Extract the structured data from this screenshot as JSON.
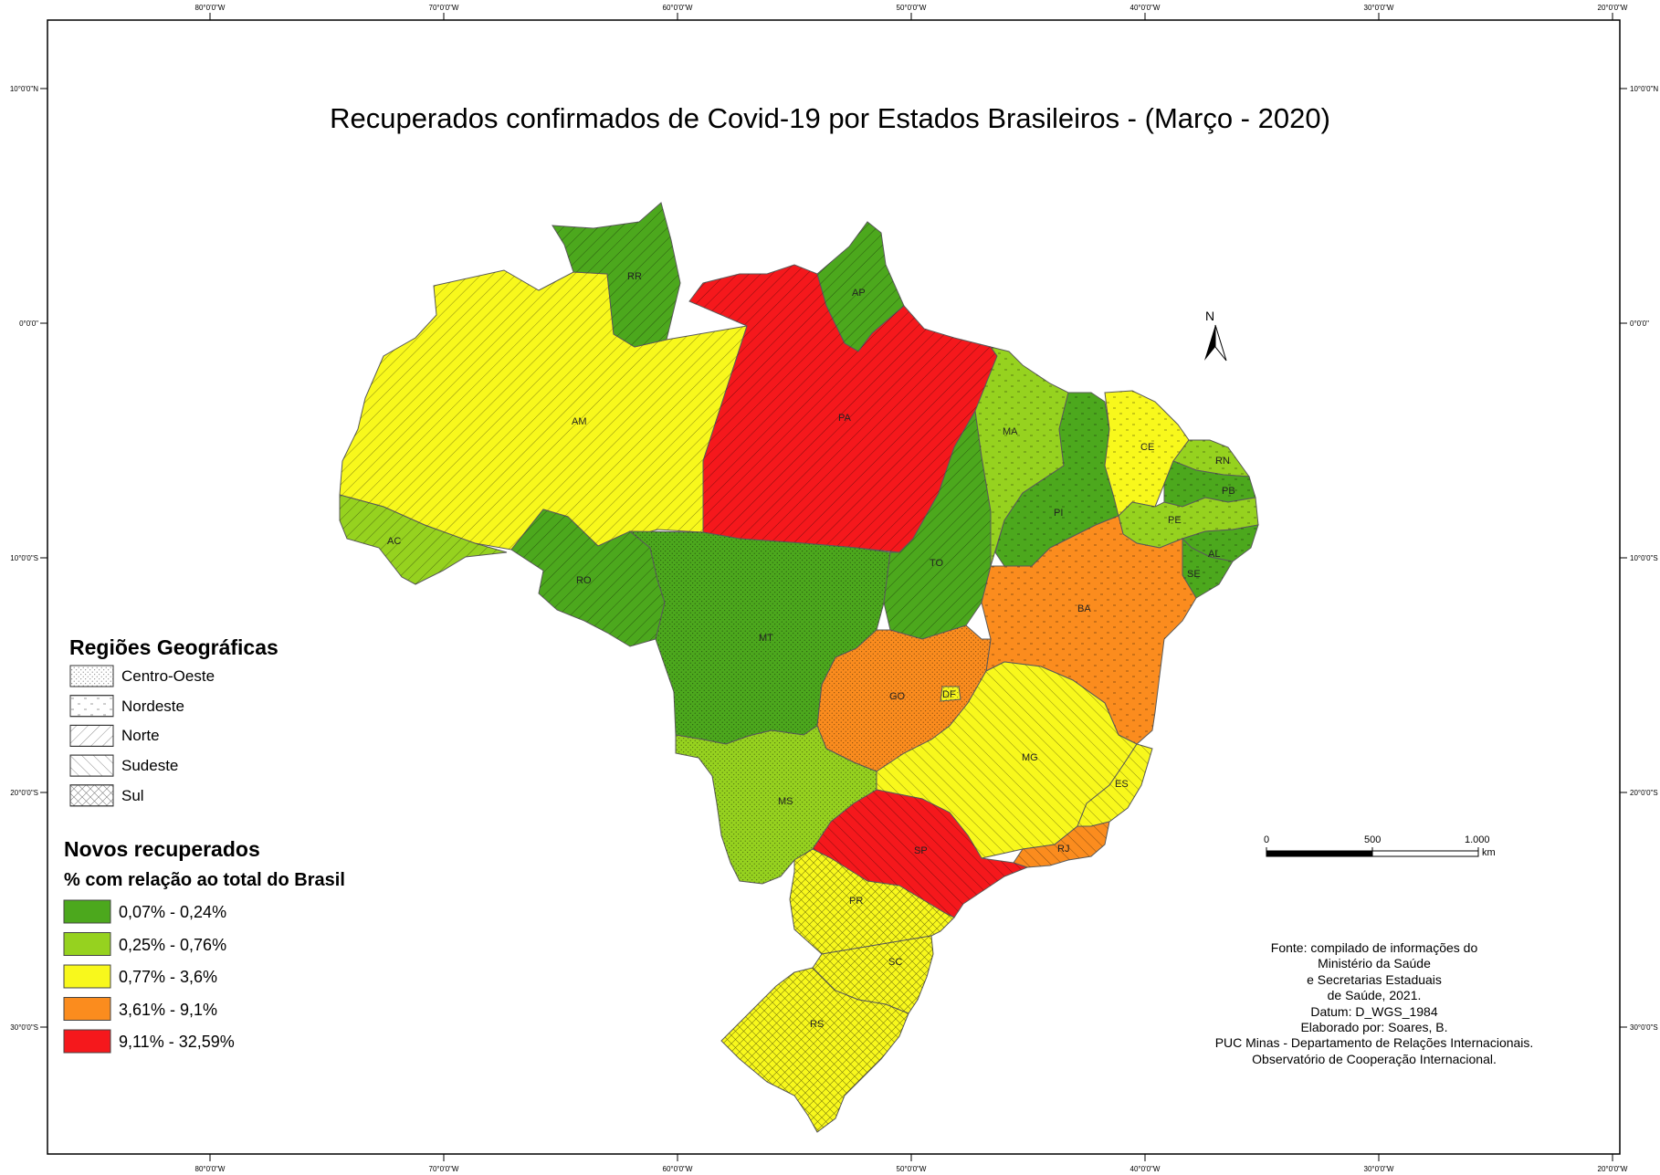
{
  "title": "Recuperados confirmados de Covid-19 por Estados Brasileiros - (Março - 2020)",
  "graticule": {
    "lon_labels": [
      "80°0'0\"W",
      "70°0'0\"W",
      "60°0'0\"W",
      "50°0'0\"W",
      "40°0'0\"W",
      "30°0'0\"W",
      "20°0'0\"W"
    ],
    "lat_labels": [
      "10°0'0\"N",
      "0°0'0\"",
      "10°0'0\"S",
      "20°0'0\"S",
      "30°0'0\"S"
    ]
  },
  "north_arrow": {
    "label": "N"
  },
  "scale_bar": {
    "labels": [
      "0",
      "500",
      "1.000"
    ],
    "unit": "km"
  },
  "legend_regions": {
    "title": "Regiões Geográficas",
    "items": [
      {
        "label": "Centro-Oeste",
        "pattern": "dots"
      },
      {
        "label": "Nordeste",
        "pattern": "dashes"
      },
      {
        "label": "Norte",
        "pattern": "diag-right"
      },
      {
        "label": "Sudeste",
        "pattern": "diag-left"
      },
      {
        "label": "Sul",
        "pattern": "cross"
      }
    ]
  },
  "legend_classes": {
    "title": "Novos recuperados",
    "subtitle": "% com relação ao total do Brasil",
    "items": [
      {
        "label": "0,07% - 0,24%",
        "color": "#4ca81d"
      },
      {
        "label": "0,25% - 0,76%",
        "color": "#96d21f"
      },
      {
        "label": "0,77% - 3,6%",
        "color": "#f8f81c"
      },
      {
        "label": "3,61% - 9,1%",
        "color": "#fb8c1e"
      },
      {
        "label": "9,11% - 32,59%",
        "color": "#f5181c"
      }
    ]
  },
  "states": [
    {
      "code": "RR",
      "class": 0,
      "region": "diag-right"
    },
    {
      "code": "AP",
      "class": 0,
      "region": "diag-right"
    },
    {
      "code": "AM",
      "class": 2,
      "region": "diag-right"
    },
    {
      "code": "PA",
      "class": 4,
      "region": "diag-right"
    },
    {
      "code": "AC",
      "class": 1,
      "region": "diag-right"
    },
    {
      "code": "RO",
      "class": 0,
      "region": "diag-right"
    },
    {
      "code": "TO",
      "class": 0,
      "region": "diag-right"
    },
    {
      "code": "MA",
      "class": 1,
      "region": "dashes"
    },
    {
      "code": "PI",
      "class": 0,
      "region": "dashes"
    },
    {
      "code": "CE",
      "class": 2,
      "region": "dashes"
    },
    {
      "code": "RN",
      "class": 1,
      "region": "dashes"
    },
    {
      "code": "PB",
      "class": 0,
      "region": "dashes"
    },
    {
      "code": "PE",
      "class": 1,
      "region": "dashes"
    },
    {
      "code": "AL",
      "class": 0,
      "region": "dashes"
    },
    {
      "code": "SE",
      "class": 0,
      "region": "dashes"
    },
    {
      "code": "BA",
      "class": 3,
      "region": "dashes"
    },
    {
      "code": "MT",
      "class": 0,
      "region": "dots"
    },
    {
      "code": "GO",
      "class": 3,
      "region": "dots"
    },
    {
      "code": "DF",
      "class": 2,
      "region": "dots"
    },
    {
      "code": "MS",
      "class": 1,
      "region": "dots"
    },
    {
      "code": "MG",
      "class": 2,
      "region": "diag-left"
    },
    {
      "code": "ES",
      "class": 2,
      "region": "diag-left"
    },
    {
      "code": "RJ",
      "class": 3,
      "region": "diag-left"
    },
    {
      "code": "SP",
      "class": 4,
      "region": "diag-left"
    },
    {
      "code": "PR",
      "class": 2,
      "region": "cross"
    },
    {
      "code": "SC",
      "class": 2,
      "region": "cross"
    },
    {
      "code": "RS",
      "class": 2,
      "region": "cross"
    }
  ],
  "source_lines": [
    "Fonte: compilado de informações do",
    "Ministério da Saúde",
    "e Secretarias Estaduais",
    "de Saúde, 2021.",
    "Datum: D_WGS_1984",
    "Elaborado por: Soares, B.",
    "PUC Minas - Departamento de Relações Internacionais.",
    "Observatório de Cooperação Internacional."
  ]
}
